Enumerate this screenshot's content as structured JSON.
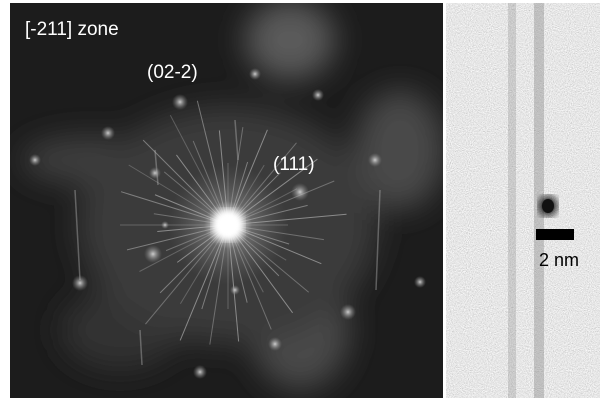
{
  "panels": {
    "diffraction": {
      "zone_label": "[-211] zone",
      "spot_labels": [
        "(02-2)",
        "(111)"
      ]
    },
    "image": {
      "scale_label": "2 nm"
    }
  }
}
